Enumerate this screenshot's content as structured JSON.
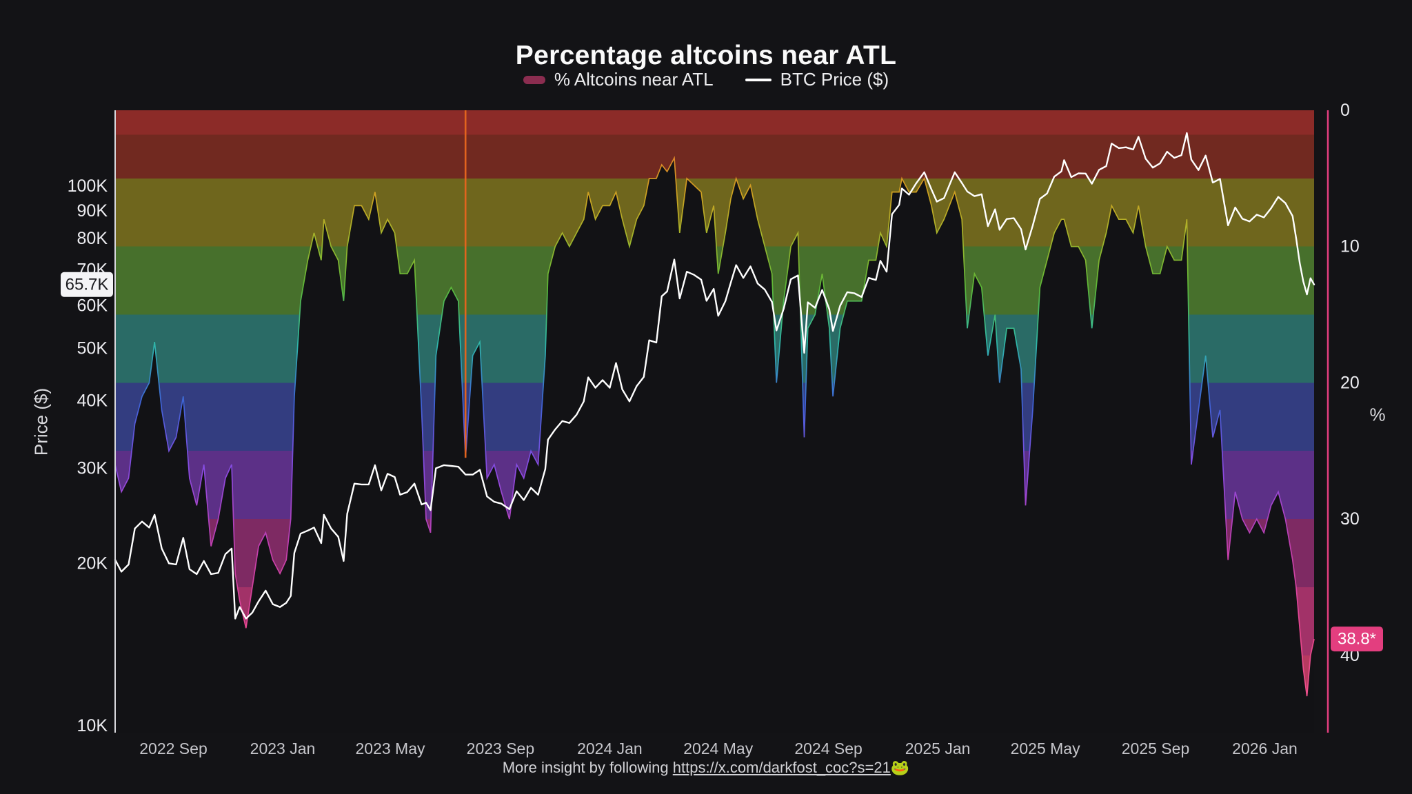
{
  "page": {
    "background": "#131316",
    "title": "Percentage altcoins near ATL"
  },
  "legend": {
    "items": [
      {
        "label": "% Altcoins near ATL",
        "swatch_color": "#8b2d50",
        "swatch_type": "area"
      },
      {
        "label": "BTC Price ($)",
        "swatch_color": "#ffffff",
        "swatch_type": "line"
      }
    ]
  },
  "footer": {
    "prefix": "More insight by following ",
    "link_text": "https://x.com/darkfost_coc?s=21",
    "emoji": "🐸"
  },
  "chart_data": {
    "type": "area+line",
    "title": "Percentage altcoins near ATL",
    "left_axis": {
      "label": "Price ($)",
      "scale": "log",
      "unit": "USD thousands",
      "tick_labels": [
        "10K",
        "20K",
        "30K",
        "40K",
        "50K",
        "60K",
        "70K",
        "80K",
        "90K",
        "100K"
      ],
      "tick_values": [
        10,
        20,
        30,
        40,
        50,
        60,
        70,
        80,
        90,
        100
      ],
      "range_thousands": [
        10,
        138
      ],
      "current_price_label": "65.7K",
      "current_price": 65.7,
      "badge_bg": "#f4f4f6",
      "badge_text_color": "#1b1b1f"
    },
    "right_axis": {
      "label": "%",
      "inverted": true,
      "tick_labels": [
        "0",
        "10",
        "20",
        "30",
        "40"
      ],
      "tick_values": [
        0,
        10,
        20,
        30,
        40
      ],
      "range_percent": [
        0,
        45.7
      ],
      "current_value_label": "38.8*",
      "current_value": 38.8,
      "spine_color": "#e33e7f",
      "badge_bg": "#e33e7f",
      "badge_text_color": "#ffffff"
    },
    "x_ticks": [
      {
        "date": "2022-09-01",
        "label": "2022 Sep"
      },
      {
        "date": "2023-01-01",
        "label": "2023 Jan"
      },
      {
        "date": "2023-05-01",
        "label": "2023 May"
      },
      {
        "date": "2023-09-01",
        "label": "2023 Sep"
      },
      {
        "date": "2024-01-01",
        "label": "2024 Jan"
      },
      {
        "date": "2024-05-01",
        "label": "2024 May"
      },
      {
        "date": "2024-09-01",
        "label": "2024 Sep"
      },
      {
        "date": "2025-01-01",
        "label": "2025 Jan"
      },
      {
        "date": "2025-05-01",
        "label": "2025 May"
      },
      {
        "date": "2025-09-01",
        "label": "2025 Sep"
      },
      {
        "date": "2026-01-01",
        "label": "2026 Jan"
      }
    ],
    "bands": [
      {
        "from": 0,
        "to": 1.8,
        "color": "#8c2b28"
      },
      {
        "from": 1.8,
        "to": 5,
        "color": "#712920"
      },
      {
        "from": 5,
        "to": 10,
        "color": "#6f661d"
      },
      {
        "from": 10,
        "to": 15,
        "color": "#47702c"
      },
      {
        "from": 15,
        "to": 20,
        "color": "#2a6b66"
      },
      {
        "from": 20,
        "to": 25,
        "color": "#333d80"
      },
      {
        "from": 25,
        "to": 30,
        "color": "#5c3087"
      },
      {
        "from": 30,
        "to": 35,
        "color": "#7e2a63"
      },
      {
        "from": 35,
        "to": 40,
        "color": "#a23268"
      },
      {
        "from": 40,
        "to": 45.7,
        "color": "#b73a60"
      }
    ],
    "edge_gradient": [
      {
        "percent": 0,
        "color": "#d94f35"
      },
      {
        "percent": 2.7,
        "color": "#e07e2a"
      },
      {
        "percent": 6,
        "color": "#cfa021"
      },
      {
        "percent": 9,
        "color": "#a8b42a"
      },
      {
        "percent": 13,
        "color": "#5cb838"
      },
      {
        "percent": 17,
        "color": "#2fb9a8"
      },
      {
        "percent": 21.5,
        "color": "#3f63d8"
      },
      {
        "percent": 26.5,
        "color": "#8a4ae0"
      },
      {
        "percent": 32,
        "color": "#c13fae"
      },
      {
        "percent": 38.5,
        "color": "#e8478d"
      },
      {
        "percent": 45.7,
        "color": "#f0558a"
      }
    ],
    "annotation_line": {
      "date": "2023-07-24",
      "to_percent": 25.5,
      "color": "#e2641e"
    },
    "dates": [
      "2022-06-28",
      "2022-07-05",
      "2022-07-13",
      "2022-07-20",
      "2022-07-28",
      "2022-08-05",
      "2022-08-11",
      "2022-08-19",
      "2022-08-27",
      "2022-09-04",
      "2022-09-12",
      "2022-09-19",
      "2022-09-27",
      "2022-10-05",
      "2022-10-13",
      "2022-10-21",
      "2022-10-29",
      "2022-11-05",
      "2022-11-09",
      "2022-11-14",
      "2022-11-21",
      "2022-11-28",
      "2022-12-05",
      "2022-12-13",
      "2022-12-21",
      "2022-12-29",
      "2023-01-05",
      "2023-01-10",
      "2023-01-14",
      "2023-01-21",
      "2023-01-29",
      "2023-02-05",
      "2023-02-13",
      "2023-02-16",
      "2023-02-24",
      "2023-03-04",
      "2023-03-10",
      "2023-03-14",
      "2023-03-22",
      "2023-03-30",
      "2023-04-07",
      "2023-04-14",
      "2023-04-21",
      "2023-04-28",
      "2023-05-06",
      "2023-05-12",
      "2023-05-20",
      "2023-05-28",
      "2023-06-05",
      "2023-06-10",
      "2023-06-15",
      "2023-06-21",
      "2023-06-30",
      "2023-07-08",
      "2023-07-16",
      "2023-07-24",
      "2023-08-01",
      "2023-08-09",
      "2023-08-17",
      "2023-08-25",
      "2023-09-02",
      "2023-09-11",
      "2023-09-19",
      "2023-09-27",
      "2023-10-05",
      "2023-10-13",
      "2023-10-21",
      "2023-10-24",
      "2023-11-01",
      "2023-11-09",
      "2023-11-17",
      "2023-11-25",
      "2023-12-03",
      "2023-12-08",
      "2023-12-16",
      "2023-12-24",
      "2024-01-01",
      "2024-01-08",
      "2024-01-15",
      "2024-01-23",
      "2024-01-31",
      "2024-02-08",
      "2024-02-14",
      "2024-02-22",
      "2024-02-28",
      "2024-03-05",
      "2024-03-13",
      "2024-03-19",
      "2024-03-27",
      "2024-04-04",
      "2024-04-12",
      "2024-04-18",
      "2024-04-26",
      "2024-05-01",
      "2024-05-09",
      "2024-05-15",
      "2024-05-21",
      "2024-05-29",
      "2024-06-06",
      "2024-06-14",
      "2024-06-22",
      "2024-06-30",
      "2024-07-05",
      "2024-07-13",
      "2024-07-21",
      "2024-07-29",
      "2024-08-05",
      "2024-08-09",
      "2024-08-17",
      "2024-08-25",
      "2024-09-02",
      "2024-09-06",
      "2024-09-14",
      "2024-09-22",
      "2024-09-30",
      "2024-10-08",
      "2024-10-16",
      "2024-10-24",
      "2024-10-29",
      "2024-11-05",
      "2024-11-11",
      "2024-11-19",
      "2024-11-22",
      "2024-11-30",
      "2024-12-08",
      "2024-12-17",
      "2024-12-25",
      "2024-12-31",
      "2025-01-08",
      "2025-01-20",
      "2025-01-28",
      "2025-02-03",
      "2025-02-11",
      "2025-02-19",
      "2025-02-26",
      "2025-03-06",
      "2025-03-11",
      "2025-03-19",
      "2025-03-27",
      "2025-04-04",
      "2025-04-09",
      "2025-04-17",
      "2025-04-25",
      "2025-05-03",
      "2025-05-11",
      "2025-05-19",
      "2025-05-22",
      "2025-05-30",
      "2025-06-07",
      "2025-06-15",
      "2025-06-22",
      "2025-06-30",
      "2025-07-08",
      "2025-07-14",
      "2025-07-22",
      "2025-07-30",
      "2025-08-07",
      "2025-08-13",
      "2025-08-21",
      "2025-08-29",
      "2025-09-06",
      "2025-09-14",
      "2025-09-22",
      "2025-09-30",
      "2025-10-06",
      "2025-10-11",
      "2025-10-19",
      "2025-10-27",
      "2025-11-04",
      "2025-11-12",
      "2025-11-21",
      "2025-11-29",
      "2025-12-07",
      "2025-12-15",
      "2025-12-23",
      "2025-12-31",
      "2026-01-08",
      "2026-01-16",
      "2026-01-24",
      "2026-02-01",
      "2026-02-05",
      "2026-02-09",
      "2026-02-13",
      "2026-02-17",
      "2026-02-21",
      "2026-02-25"
    ],
    "series": [
      {
        "name": "% Altcoins near ATL",
        "axis": "right",
        "style": "rainbow-area",
        "values": [
          26,
          28,
          27,
          23,
          21,
          20,
          17,
          22,
          25,
          24,
          21,
          27,
          29,
          26,
          32,
          30,
          27,
          26,
          34,
          36,
          38,
          35,
          32,
          31,
          33,
          34,
          33,
          30,
          21,
          14,
          11,
          9,
          11,
          8,
          10,
          11,
          14,
          10,
          7,
          7,
          8,
          6,
          9,
          8,
          9,
          12,
          12,
          11,
          22,
          30,
          31,
          18,
          14,
          13,
          14,
          25.5,
          18,
          17,
          27,
          26,
          28,
          30,
          26,
          27,
          25,
          26,
          18,
          12,
          10,
          9,
          10,
          9,
          8,
          6,
          8,
          7,
          7,
          6,
          8,
          10,
          8,
          7,
          5,
          5,
          4,
          4.5,
          3.5,
          9,
          5,
          5.5,
          6,
          9,
          7,
          12,
          9,
          6.5,
          5,
          6.5,
          5.5,
          8,
          10,
          12,
          20,
          14,
          10,
          9,
          24,
          16,
          15,
          12,
          16,
          21,
          16,
          14,
          14,
          14,
          11,
          11,
          9,
          10,
          6,
          6,
          5,
          6,
          6,
          5,
          7,
          9,
          8,
          6,
          8,
          16,
          12,
          13,
          18,
          15,
          20,
          16,
          16,
          19,
          29,
          22,
          13,
          11,
          9,
          8,
          8,
          10,
          10,
          11,
          16,
          11,
          9,
          7,
          8,
          8,
          9,
          7,
          10,
          12,
          12,
          10,
          11,
          11,
          8,
          26,
          22,
          18,
          24,
          22,
          33,
          28,
          30,
          31,
          30,
          31,
          29,
          28,
          30,
          33,
          35,
          38,
          41,
          43,
          40,
          38.8
        ]
      },
      {
        "name": "BTC Price ($)",
        "axis": "left",
        "style": "line",
        "color": "#ffffff",
        "unit": "USD thousands",
        "values": [
          20.3,
          19.3,
          19.9,
          23.2,
          23.9,
          23.3,
          24.6,
          21.3,
          20.0,
          19.9,
          22.3,
          19.5,
          19.1,
          20.2,
          19.1,
          19.2,
          20.8,
          21.3,
          15.8,
          16.6,
          15.8,
          16.2,
          17.0,
          17.8,
          16.8,
          16.6,
          16.9,
          17.4,
          20.9,
          22.7,
          23.0,
          23.3,
          21.8,
          24.6,
          23.2,
          22.4,
          20.2,
          24.7,
          28.1,
          28.0,
          28.0,
          30.4,
          27.3,
          29.3,
          28.9,
          26.8,
          27.1,
          28.1,
          25.7,
          25.9,
          25.1,
          30.0,
          30.4,
          30.3,
          30.2,
          29.2,
          29.2,
          29.8,
          26.6,
          26.0,
          25.8,
          25.2,
          27.2,
          26.2,
          27.6,
          26.8,
          29.9,
          33.9,
          35.4,
          36.7,
          36.4,
          37.7,
          39.9,
          44.2,
          42.3,
          43.7,
          42.3,
          47.0,
          42.0,
          39.9,
          42.6,
          44.3,
          51.8,
          51.3,
          62.5,
          63.8,
          73.1,
          61.9,
          69.4,
          68.5,
          67.1,
          61.3,
          64.5,
          57.5,
          61.2,
          66.2,
          71.4,
          67.6,
          71.0,
          66.0,
          64.3,
          61.0,
          54.0,
          59.2,
          67.2,
          68.3,
          49.1,
          60.9,
          59.5,
          64.2,
          59.1,
          53.9,
          60.0,
          63.6,
          63.3,
          62.3,
          67.6,
          67.0,
          72.7,
          69.4,
          88.7,
          92.3,
          99.0,
          96.4,
          101.2,
          106.1,
          98.6,
          93.6,
          95.0,
          106.1,
          101.3,
          97.7,
          95.8,
          96.6,
          84.3,
          90.6,
          83.0,
          86.9,
          87.2,
          83.2,
          76.3,
          84.5,
          94.7,
          96.9,
          104.1,
          106.5,
          111.7,
          103.9,
          105.6,
          105.5,
          101.0,
          107.2,
          108.9,
          119.9,
          117.6,
          118.0,
          116.9,
          123.4,
          112.4,
          108.2,
          110.2,
          115.8,
          112.8,
          114.1,
          125.4,
          112.0,
          107.1,
          113.9,
          101.5,
          103.1,
          84.6,
          91.3,
          87.0,
          86.0,
          88.5,
          87.5,
          91.0,
          95.5,
          93.0,
          88.0,
          80.0,
          72.0,
          66.5,
          63.0,
          67.5,
          65.7
        ]
      }
    ]
  }
}
